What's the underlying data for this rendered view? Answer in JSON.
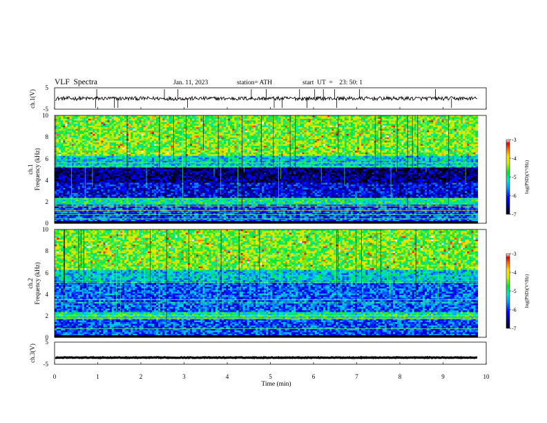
{
  "header": {
    "title": "VLF  Spectra",
    "date": "Jan. 11, 2023",
    "station": "station= ATH",
    "start": "start  UT  =    23: 50: 1"
  },
  "chart_data": [
    {
      "type": "line",
      "name": "ch1-waveform",
      "ylabel": "ch.1(V)",
      "ylim": [
        -5,
        5
      ],
      "yticks": [
        "5",
        "-5"
      ],
      "xlim": [
        0,
        10
      ],
      "x_end": 9.8,
      "baseline": 0,
      "noise_amplitude": 0.9
    },
    {
      "type": "heatmap",
      "name": "ch1-spectrogram",
      "ylabel": "ch.1\nFrequency  (kHz)",
      "ylim": [
        0,
        10
      ],
      "yticks": [
        "0",
        "2",
        "4",
        "6",
        "8",
        "10"
      ],
      "xlim": [
        0,
        10
      ],
      "x_end": 9.8,
      "colorbar": {
        "label": "log(PSD)(V²/Hz)",
        "range": [
          -7,
          -3
        ],
        "ticks": [
          "-3",
          "-4",
          "-5",
          "-6",
          "-7"
        ]
      }
    },
    {
      "type": "heatmap",
      "name": "ch2-spectrogram",
      "ylabel": "ch.2\nFrequency  (kHz)",
      "ylim": [
        0,
        10
      ],
      "yticks": [
        "0",
        "2",
        "4",
        "6",
        "8",
        "10"
      ],
      "xlim": [
        0,
        10
      ],
      "x_end": 9.8,
      "colorbar": {
        "label": "log(PSD)(V²/Hz)",
        "range": [
          -7,
          -3
        ],
        "ticks": [
          "-3",
          "-4",
          "-5",
          "-6",
          "-7"
        ]
      }
    },
    {
      "type": "line",
      "name": "ch3-waveform",
      "ylabel": "ch.3(V)",
      "ylim": [
        -5,
        5
      ],
      "yticks": [
        "5",
        "0",
        "-5"
      ],
      "xlim": [
        0,
        10
      ],
      "x_end": 9.8,
      "baseline": -2,
      "noise_amplitude": 0.15,
      "xlabel": "Time  (min)",
      "xticks": [
        "0",
        "1",
        "2",
        "3",
        "4",
        "5",
        "6",
        "7",
        "8",
        "9",
        "10"
      ]
    }
  ]
}
